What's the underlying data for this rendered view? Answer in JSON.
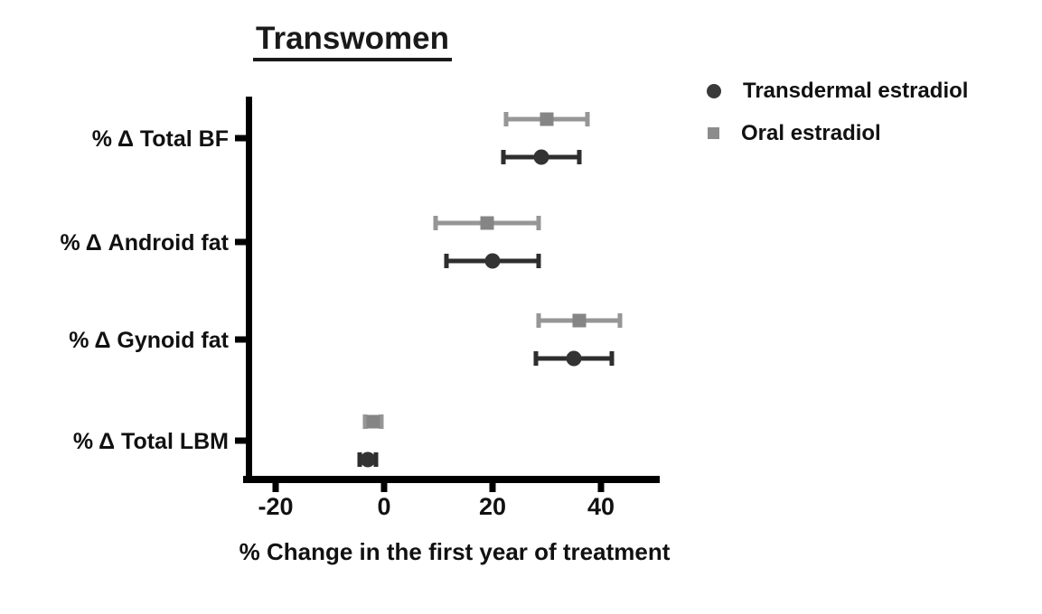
{
  "title": "Transwomen",
  "legend": {
    "items": [
      {
        "label": "Transdermal estradiol",
        "marker": "circle",
        "color": "#3a3a3a"
      },
      {
        "label": "Oral estradiol",
        "marker": "square",
        "color": "#8c8c8c"
      }
    ]
  },
  "chart_data": {
    "type": "scatter",
    "variant": "horizontal-error-bar-forest-plot",
    "title": "Transwomen",
    "xlabel": "% Change in the first year of treatment",
    "ylabel": "",
    "categories": [
      "% Δ Total BF",
      "% Δ Android fat",
      "% Δ Gynoid fat",
      "% Δ Total LBM"
    ],
    "x_ticks": [
      -20,
      0,
      20,
      40
    ],
    "xlim": [
      -25,
      51
    ],
    "grid": false,
    "legend_position": "top-right",
    "series": [
      {
        "name": "Transdermal estradiol",
        "marker": "circle",
        "color": "#333333",
        "line_color": "#2e2e2e",
        "values": [
          29,
          20,
          35,
          -3
        ],
        "ci_low": [
          22,
          11.5,
          28,
          -4.5
        ],
        "ci_high": [
          36,
          28.5,
          42,
          -1.5
        ]
      },
      {
        "name": "Oral estradiol",
        "marker": "square",
        "color": "#858585",
        "line_color": "#969696",
        "values": [
          30,
          19,
          36,
          -2
        ],
        "ci_low": [
          22.5,
          9.5,
          28.5,
          -3.5
        ],
        "ci_high": [
          37.5,
          28.5,
          43.5,
          -0.5
        ]
      }
    ]
  }
}
